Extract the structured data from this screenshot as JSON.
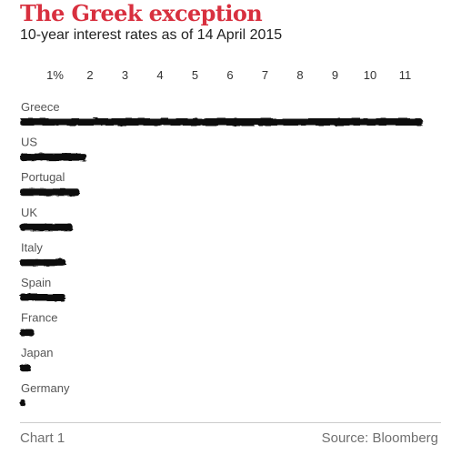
{
  "header": {
    "title": "The Greek exception",
    "subtitle": "10-year interest rates as of 14 April 2015"
  },
  "footer": {
    "chart_label": "Chart 1",
    "source": "Source: Bloomberg"
  },
  "colors": {
    "title": "#d8303f",
    "bar": "#111111"
  },
  "chart_data": {
    "type": "bar",
    "orientation": "horizontal",
    "title": "The Greek exception",
    "subtitle": "10-year interest rates as of 14 April 2015",
    "categories": [
      "Greece",
      "US",
      "Portugal",
      "UK",
      "Italy",
      "Spain",
      "France",
      "Japan",
      "Germany"
    ],
    "values": [
      11.5,
      1.9,
      1.7,
      1.5,
      1.3,
      1.3,
      0.4,
      0.3,
      0.15
    ],
    "tick_labels": [
      "1%",
      "2",
      "3",
      "4",
      "5",
      "6",
      "7",
      "8",
      "9",
      "10",
      "11"
    ],
    "xlim": [
      0,
      11.5
    ],
    "grid": false,
    "legend": "none"
  }
}
